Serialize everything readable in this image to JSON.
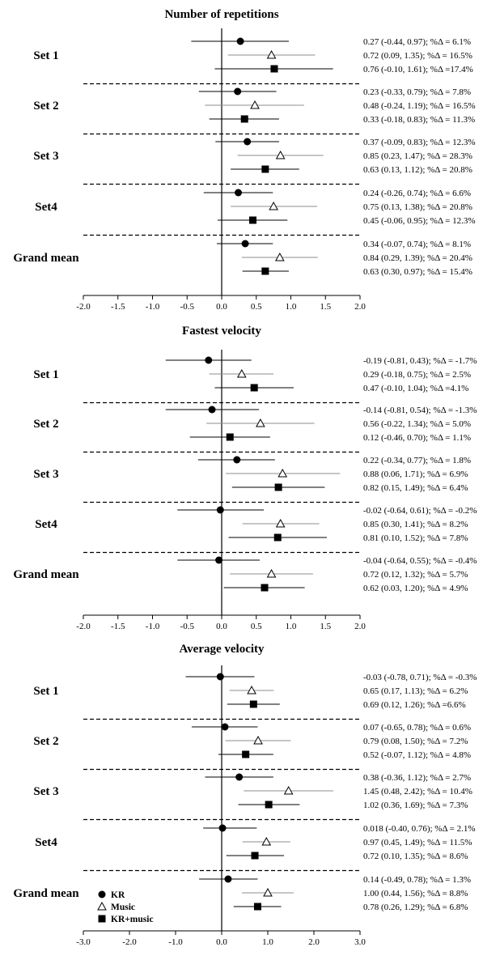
{
  "legend": [
    {
      "name": "KR",
      "marker": "circle"
    },
    {
      "name": "Music",
      "marker": "triangle"
    },
    {
      "name": "KR+music",
      "marker": "square"
    }
  ],
  "colors": {
    "ink": "#000000",
    "music_ci": "#8c8c8c"
  },
  "chart_data": [
    {
      "type": "forest",
      "title": "Number of repetitions",
      "xlim": [
        -2.0,
        2.0
      ],
      "ticks": [
        "-2.0",
        "-1.5",
        "-1.0",
        "-0.5",
        "0.0",
        "0.5",
        "1.0",
        "1.5",
        "2.0"
      ],
      "tick_values": [
        -2.0,
        -1.5,
        -1.0,
        -0.5,
        0.0,
        0.5,
        1.0,
        1.5,
        2.0
      ],
      "groups": [
        {
          "label": "Set 1",
          "rows": [
            {
              "series": "KR",
              "est": 0.27,
              "lo": -0.44,
              "hi": 0.97,
              "text": "0.27 (-0.44, 0.97); %Δ = 6.1%"
            },
            {
              "series": "Music",
              "est": 0.72,
              "lo": 0.09,
              "hi": 1.35,
              "text": "0.72 (0.09, 1.35); %Δ = 16.5%"
            },
            {
              "series": "KR+music",
              "est": 0.76,
              "lo": -0.1,
              "hi": 1.61,
              "text": "0.76 (-0.10, 1.61); %Δ =17.4%"
            }
          ]
        },
        {
          "label": "Set 2",
          "rows": [
            {
              "series": "KR",
              "est": 0.23,
              "lo": -0.33,
              "hi": 0.79,
              "text": "0.23 (-0.33, 0.79); %Δ = 7.8%"
            },
            {
              "series": "Music",
              "est": 0.48,
              "lo": -0.24,
              "hi": 1.19,
              "text": "0.48 (-0.24, 1.19); %Δ = 16.5%"
            },
            {
              "series": "KR+music",
              "est": 0.33,
              "lo": -0.18,
              "hi": 0.83,
              "text": "0.33 (-0.18, 0.83); %Δ = 11.3%"
            }
          ]
        },
        {
          "label": "Set 3",
          "rows": [
            {
              "series": "KR",
              "est": 0.37,
              "lo": -0.09,
              "hi": 0.83,
              "text": "0.37 (-0.09, 0.83); %Δ = 12.3%"
            },
            {
              "series": "Music",
              "est": 0.85,
              "lo": 0.23,
              "hi": 1.47,
              "text": "0.85 (0.23, 1.47); %Δ = 28.3%"
            },
            {
              "series": "KR+music",
              "est": 0.63,
              "lo": 0.13,
              "hi": 1.12,
              "text": "0.63 (0.13, 1.12); %Δ = 20.8%"
            }
          ]
        },
        {
          "label": "Set4",
          "rows": [
            {
              "series": "KR",
              "est": 0.24,
              "lo": -0.26,
              "hi": 0.74,
              "text": "0.24 (-0.26, 0.74); %Δ = 6.6%"
            },
            {
              "series": "Music",
              "est": 0.75,
              "lo": 0.13,
              "hi": 1.38,
              "text": "0.75 (0.13, 1.38); %Δ = 20.8%"
            },
            {
              "series": "KR+music",
              "est": 0.45,
              "lo": -0.06,
              "hi": 0.95,
              "text": "0.45 (-0.06, 0.95); %Δ = 12.3%"
            }
          ]
        },
        {
          "label": "Grand mean",
          "rows": [
            {
              "series": "KR",
              "est": 0.34,
              "lo": -0.07,
              "hi": 0.74,
              "text": "0.34 (-0.07, 0.74); %Δ = 8.1%"
            },
            {
              "series": "Music",
              "est": 0.84,
              "lo": 0.29,
              "hi": 1.39,
              "text": "0.84 (0.29, 1.39); %Δ = 20.4%"
            },
            {
              "series": "KR+music",
              "est": 0.63,
              "lo": 0.3,
              "hi": 0.97,
              "text": "0.63 (0.30, 0.97); %Δ = 15.4%"
            }
          ]
        }
      ]
    },
    {
      "type": "forest",
      "title": "Fastest velocity",
      "xlim": [
        -2.0,
        2.0
      ],
      "ticks": [
        "-2.0",
        "-1.5",
        "-1.0",
        "-0.5",
        "0.0",
        "0.5",
        "1.0",
        "1.5",
        "2.0"
      ],
      "tick_values": [
        -2.0,
        -1.5,
        -1.0,
        -0.5,
        0.0,
        0.5,
        1.0,
        1.5,
        2.0
      ],
      "groups": [
        {
          "label": "Set 1",
          "rows": [
            {
              "series": "KR",
              "est": -0.19,
              "lo": -0.81,
              "hi": 0.43,
              "text": "-0.19 (-0.81, 0.43); %Δ = -1.7%"
            },
            {
              "series": "Music",
              "est": 0.29,
              "lo": -0.18,
              "hi": 0.75,
              "text": "0.29 (-0.18, 0.75); %Δ = 2.5%"
            },
            {
              "series": "KR+music",
              "est": 0.47,
              "lo": -0.1,
              "hi": 1.04,
              "text": "0.47 (-0.10, 1.04); %Δ =4.1%"
            }
          ]
        },
        {
          "label": "Set 2",
          "rows": [
            {
              "series": "KR",
              "est": -0.14,
              "lo": -0.81,
              "hi": 0.54,
              "text": "-0.14 (-0.81, 0.54); %Δ = -1.3%"
            },
            {
              "series": "Music",
              "est": 0.56,
              "lo": -0.22,
              "hi": 1.34,
              "text": "0.56 (-0.22, 1.34); %Δ = 5.0%"
            },
            {
              "series": "KR+music",
              "est": 0.12,
              "lo": -0.46,
              "hi": 0.7,
              "text": "0.12 (-0.46, 0.70); %Δ = 1.1%"
            }
          ]
        },
        {
          "label": "Set 3",
          "rows": [
            {
              "series": "KR",
              "est": 0.22,
              "lo": -0.34,
              "hi": 0.77,
              "text": "0.22 (-0.34, 0.77); %Δ = 1.8%"
            },
            {
              "series": "Music",
              "est": 0.88,
              "lo": 0.06,
              "hi": 1.71,
              "text": "0.88 (0.06, 1.71); %Δ = 6.9%"
            },
            {
              "series": "KR+music",
              "est": 0.82,
              "lo": 0.15,
              "hi": 1.49,
              "text": "0.82 (0.15, 1.49); %Δ = 6.4%"
            }
          ]
        },
        {
          "label": "Set4",
          "rows": [
            {
              "series": "KR",
              "est": -0.02,
              "lo": -0.64,
              "hi": 0.61,
              "text": "-0.02 (-0.64, 0.61); %Δ = -0.2%"
            },
            {
              "series": "Music",
              "est": 0.85,
              "lo": 0.3,
              "hi": 1.41,
              "text": "0.85 (0.30, 1.41); %Δ = 8.2%"
            },
            {
              "series": "KR+music",
              "est": 0.81,
              "lo": 0.1,
              "hi": 1.52,
              "text": "0.81 (0.10, 1.52); %Δ = 7.8%"
            }
          ]
        },
        {
          "label": "Grand mean",
          "rows": [
            {
              "series": "KR",
              "est": -0.04,
              "lo": -0.64,
              "hi": 0.55,
              "text": "-0.04 (-0.64, 0.55); %Δ = -0.4%"
            },
            {
              "series": "Music",
              "est": 0.72,
              "lo": 0.12,
              "hi": 1.32,
              "text": "0.72 (0.12, 1.32); %Δ = 5.7%"
            },
            {
              "series": "KR+music",
              "est": 0.62,
              "lo": 0.03,
              "hi": 1.2,
              "text": "0.62 (0.03, 1.20); %Δ = 4.9%"
            }
          ]
        }
      ]
    },
    {
      "type": "forest",
      "title": "Average velocity",
      "xlim": [
        -3.0,
        3.0
      ],
      "ticks": [
        "-3.0",
        "-2.0",
        "-1.0",
        "0.0",
        "1.0",
        "2.0",
        "3.0"
      ],
      "tick_values": [
        -3.0,
        -2.0,
        -1.0,
        0.0,
        1.0,
        2.0,
        3.0
      ],
      "groups": [
        {
          "label": "Set 1",
          "rows": [
            {
              "series": "KR",
              "est": -0.03,
              "lo": -0.78,
              "hi": 0.71,
              "text": "-0.03 (-0.78, 0.71); %Δ = -0.3%"
            },
            {
              "series": "Music",
              "est": 0.65,
              "lo": 0.17,
              "hi": 1.13,
              "text": "0.65 (0.17, 1.13); %Δ = 6.2%"
            },
            {
              "series": "KR+music",
              "est": 0.69,
              "lo": 0.12,
              "hi": 1.26,
              "text": "0.69 (0.12, 1.26); %Δ =6.6%"
            }
          ]
        },
        {
          "label": "Set 2",
          "rows": [
            {
              "series": "KR",
              "est": 0.07,
              "lo": -0.65,
              "hi": 0.78,
              "text": "0.07 (-0.65, 0.78); %Δ = 0.6%"
            },
            {
              "series": "Music",
              "est": 0.79,
              "lo": 0.08,
              "hi": 1.5,
              "text": "0.79 (0.08, 1.50); %Δ = 7.2%"
            },
            {
              "series": "KR+music",
              "est": 0.52,
              "lo": -0.07,
              "hi": 1.12,
              "text": "0.52 (-0.07, 1.12); %Δ = 4.8%"
            }
          ]
        },
        {
          "label": "Set 3",
          "rows": [
            {
              "series": "KR",
              "est": 0.38,
              "lo": -0.36,
              "hi": 1.12,
              "text": "0.38 (-0.36, 1.12); %Δ = 2.7%"
            },
            {
              "series": "Music",
              "est": 1.45,
              "lo": 0.48,
              "hi": 2.42,
              "text": "1.45 (0.48, 2.42); %Δ = 10.4%"
            },
            {
              "series": "KR+music",
              "est": 1.02,
              "lo": 0.36,
              "hi": 1.69,
              "text": "1.02 (0.36, 1.69); %Δ = 7.3%"
            }
          ]
        },
        {
          "label": "Set4",
          "rows": [
            {
              "series": "KR",
              "est": 0.018,
              "lo": -0.4,
              "hi": 0.76,
              "text": "0.018 (-0.40, 0.76); %Δ = 2.1%"
            },
            {
              "series": "Music",
              "est": 0.97,
              "lo": 0.45,
              "hi": 1.49,
              "text": "0.97 (0.45, 1.49); %Δ = 11.5%"
            },
            {
              "series": "KR+music",
              "est": 0.72,
              "lo": 0.1,
              "hi": 1.35,
              "text": "0.72 (0.10, 1.35); %Δ = 8.6%"
            }
          ]
        },
        {
          "label": "Grand mean",
          "rows": [
            {
              "series": "KR",
              "est": 0.14,
              "lo": -0.49,
              "hi": 0.78,
              "text": "0.14 (-0.49, 0.78); %Δ = 1.3%"
            },
            {
              "series": "Music",
              "est": 1.0,
              "lo": 0.44,
              "hi": 1.56,
              "text": "1.00 (0.44, 1.56); %Δ = 8.8%"
            },
            {
              "series": "KR+music",
              "est": 0.78,
              "lo": 0.26,
              "hi": 1.29,
              "text": "0.78 (0.26, 1.29); %Δ = 6.8%"
            }
          ]
        }
      ]
    }
  ]
}
